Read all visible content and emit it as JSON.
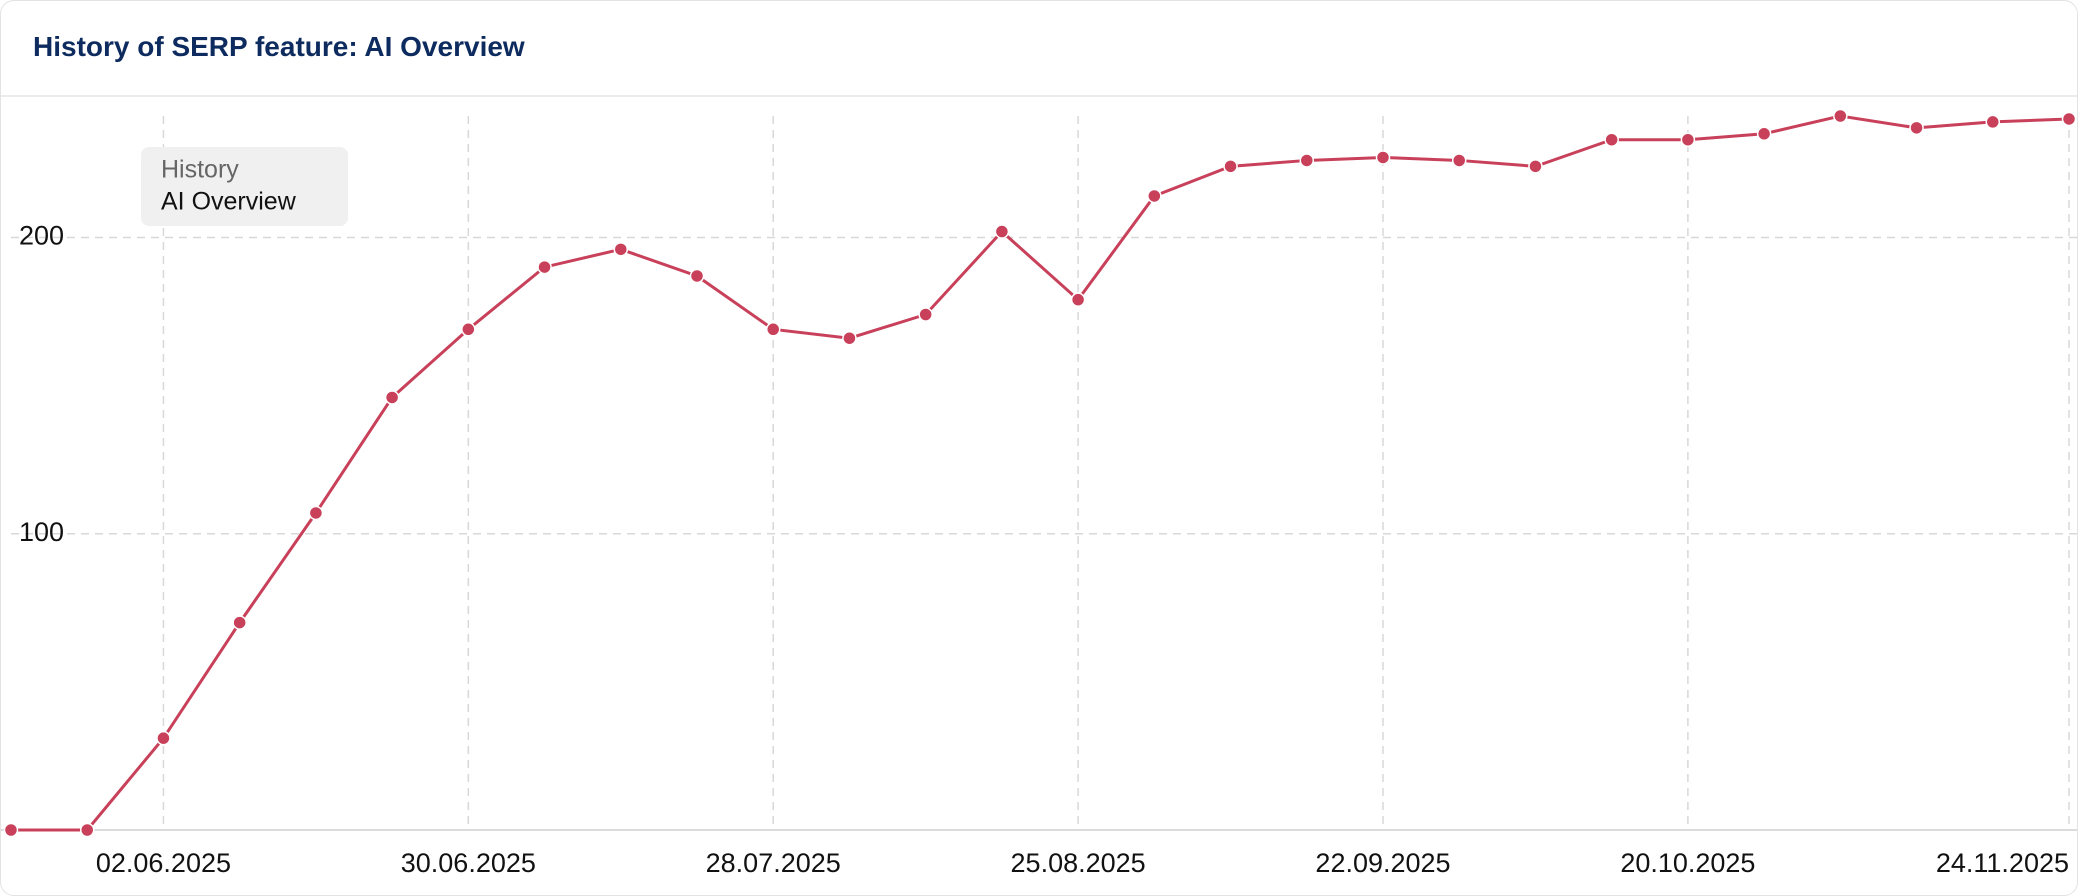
{
  "chart_data": {
    "type": "line",
    "title": "History of SERP feature: AI Overview",
    "legend_title": "History",
    "x": [
      "19.05.2025",
      "26.05.2025",
      "02.06.2025",
      "09.06.2025",
      "16.06.2025",
      "23.06.2025",
      "30.06.2025",
      "07.07.2025",
      "14.07.2025",
      "21.07.2025",
      "28.07.2025",
      "04.08.2025",
      "11.08.2025",
      "18.08.2025",
      "25.08.2025",
      "01.09.2025",
      "08.09.2025",
      "15.09.2025",
      "22.09.2025",
      "29.09.2025",
      "06.10.2025",
      "13.10.2025",
      "20.10.2025",
      "27.10.2025",
      "03.11.2025",
      "10.11.2025",
      "17.11.2025",
      "24.11.2025"
    ],
    "series": [
      {
        "name": "AI Overview",
        "color": "#c8405a",
        "values": [
          0,
          0,
          31,
          70,
          107,
          146,
          169,
          190,
          196,
          187,
          169,
          166,
          174,
          202,
          179,
          214,
          224,
          226,
          227,
          226,
          224,
          233,
          233,
          235,
          241,
          237,
          239,
          240
        ]
      }
    ],
    "xticks": [
      "02.06.2025",
      "30.06.2025",
      "28.07.2025",
      "25.08.2025",
      "22.09.2025",
      "20.10.2025",
      "24.11.2025"
    ],
    "ylim": [
      0,
      241
    ],
    "yticks": [
      100,
      200
    ],
    "grid": true
  }
}
